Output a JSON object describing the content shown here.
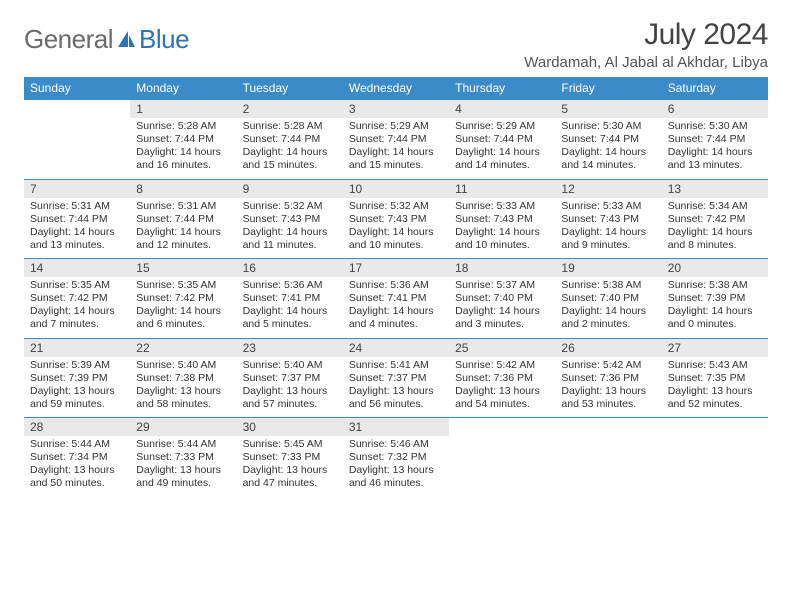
{
  "brand": {
    "name_part1": "General",
    "name_part2": "Blue"
  },
  "title": "July 2024",
  "location": "Wardamah, Al Jabal al Akhdar, Libya",
  "colors": {
    "header_bg": "#3b8bc8",
    "header_text": "#ffffff",
    "daynum_bg": "#e9e9e9",
    "border": "#3b8bc8",
    "logo_gray": "#6b6b6b",
    "logo_blue": "#2c74b3",
    "text": "#333333",
    "background": "#ffffff"
  },
  "typography": {
    "title_fontsize": 30,
    "location_fontsize": 15,
    "header_fontsize": 12,
    "daynum_fontsize": 12,
    "detail_fontsize": 10.5
  },
  "day_labels": [
    "Sunday",
    "Monday",
    "Tuesday",
    "Wednesday",
    "Thursday",
    "Friday",
    "Saturday"
  ],
  "weeks": [
    [
      null,
      {
        "n": "1",
        "sun": "Sunrise: 5:28 AM",
        "set": "Sunset: 7:44 PM",
        "d1": "Daylight: 14 hours",
        "d2": "and 16 minutes."
      },
      {
        "n": "2",
        "sun": "Sunrise: 5:28 AM",
        "set": "Sunset: 7:44 PM",
        "d1": "Daylight: 14 hours",
        "d2": "and 15 minutes."
      },
      {
        "n": "3",
        "sun": "Sunrise: 5:29 AM",
        "set": "Sunset: 7:44 PM",
        "d1": "Daylight: 14 hours",
        "d2": "and 15 minutes."
      },
      {
        "n": "4",
        "sun": "Sunrise: 5:29 AM",
        "set": "Sunset: 7:44 PM",
        "d1": "Daylight: 14 hours",
        "d2": "and 14 minutes."
      },
      {
        "n": "5",
        "sun": "Sunrise: 5:30 AM",
        "set": "Sunset: 7:44 PM",
        "d1": "Daylight: 14 hours",
        "d2": "and 14 minutes."
      },
      {
        "n": "6",
        "sun": "Sunrise: 5:30 AM",
        "set": "Sunset: 7:44 PM",
        "d1": "Daylight: 14 hours",
        "d2": "and 13 minutes."
      }
    ],
    [
      {
        "n": "7",
        "sun": "Sunrise: 5:31 AM",
        "set": "Sunset: 7:44 PM",
        "d1": "Daylight: 14 hours",
        "d2": "and 13 minutes."
      },
      {
        "n": "8",
        "sun": "Sunrise: 5:31 AM",
        "set": "Sunset: 7:44 PM",
        "d1": "Daylight: 14 hours",
        "d2": "and 12 minutes."
      },
      {
        "n": "9",
        "sun": "Sunrise: 5:32 AM",
        "set": "Sunset: 7:43 PM",
        "d1": "Daylight: 14 hours",
        "d2": "and 11 minutes."
      },
      {
        "n": "10",
        "sun": "Sunrise: 5:32 AM",
        "set": "Sunset: 7:43 PM",
        "d1": "Daylight: 14 hours",
        "d2": "and 10 minutes."
      },
      {
        "n": "11",
        "sun": "Sunrise: 5:33 AM",
        "set": "Sunset: 7:43 PM",
        "d1": "Daylight: 14 hours",
        "d2": "and 10 minutes."
      },
      {
        "n": "12",
        "sun": "Sunrise: 5:33 AM",
        "set": "Sunset: 7:43 PM",
        "d1": "Daylight: 14 hours",
        "d2": "and 9 minutes."
      },
      {
        "n": "13",
        "sun": "Sunrise: 5:34 AM",
        "set": "Sunset: 7:42 PM",
        "d1": "Daylight: 14 hours",
        "d2": "and 8 minutes."
      }
    ],
    [
      {
        "n": "14",
        "sun": "Sunrise: 5:35 AM",
        "set": "Sunset: 7:42 PM",
        "d1": "Daylight: 14 hours",
        "d2": "and 7 minutes."
      },
      {
        "n": "15",
        "sun": "Sunrise: 5:35 AM",
        "set": "Sunset: 7:42 PM",
        "d1": "Daylight: 14 hours",
        "d2": "and 6 minutes."
      },
      {
        "n": "16",
        "sun": "Sunrise: 5:36 AM",
        "set": "Sunset: 7:41 PM",
        "d1": "Daylight: 14 hours",
        "d2": "and 5 minutes."
      },
      {
        "n": "17",
        "sun": "Sunrise: 5:36 AM",
        "set": "Sunset: 7:41 PM",
        "d1": "Daylight: 14 hours",
        "d2": "and 4 minutes."
      },
      {
        "n": "18",
        "sun": "Sunrise: 5:37 AM",
        "set": "Sunset: 7:40 PM",
        "d1": "Daylight: 14 hours",
        "d2": "and 3 minutes."
      },
      {
        "n": "19",
        "sun": "Sunrise: 5:38 AM",
        "set": "Sunset: 7:40 PM",
        "d1": "Daylight: 14 hours",
        "d2": "and 2 minutes."
      },
      {
        "n": "20",
        "sun": "Sunrise: 5:38 AM",
        "set": "Sunset: 7:39 PM",
        "d1": "Daylight: 14 hours",
        "d2": "and 0 minutes."
      }
    ],
    [
      {
        "n": "21",
        "sun": "Sunrise: 5:39 AM",
        "set": "Sunset: 7:39 PM",
        "d1": "Daylight: 13 hours",
        "d2": "and 59 minutes."
      },
      {
        "n": "22",
        "sun": "Sunrise: 5:40 AM",
        "set": "Sunset: 7:38 PM",
        "d1": "Daylight: 13 hours",
        "d2": "and 58 minutes."
      },
      {
        "n": "23",
        "sun": "Sunrise: 5:40 AM",
        "set": "Sunset: 7:37 PM",
        "d1": "Daylight: 13 hours",
        "d2": "and 57 minutes."
      },
      {
        "n": "24",
        "sun": "Sunrise: 5:41 AM",
        "set": "Sunset: 7:37 PM",
        "d1": "Daylight: 13 hours",
        "d2": "and 56 minutes."
      },
      {
        "n": "25",
        "sun": "Sunrise: 5:42 AM",
        "set": "Sunset: 7:36 PM",
        "d1": "Daylight: 13 hours",
        "d2": "and 54 minutes."
      },
      {
        "n": "26",
        "sun": "Sunrise: 5:42 AM",
        "set": "Sunset: 7:36 PM",
        "d1": "Daylight: 13 hours",
        "d2": "and 53 minutes."
      },
      {
        "n": "27",
        "sun": "Sunrise: 5:43 AM",
        "set": "Sunset: 7:35 PM",
        "d1": "Daylight: 13 hours",
        "d2": "and 52 minutes."
      }
    ],
    [
      {
        "n": "28",
        "sun": "Sunrise: 5:44 AM",
        "set": "Sunset: 7:34 PM",
        "d1": "Daylight: 13 hours",
        "d2": "and 50 minutes."
      },
      {
        "n": "29",
        "sun": "Sunrise: 5:44 AM",
        "set": "Sunset: 7:33 PM",
        "d1": "Daylight: 13 hours",
        "d2": "and 49 minutes."
      },
      {
        "n": "30",
        "sun": "Sunrise: 5:45 AM",
        "set": "Sunset: 7:33 PM",
        "d1": "Daylight: 13 hours",
        "d2": "and 47 minutes."
      },
      {
        "n": "31",
        "sun": "Sunrise: 5:46 AM",
        "set": "Sunset: 7:32 PM",
        "d1": "Daylight: 13 hours",
        "d2": "and 46 minutes."
      },
      null,
      null,
      null
    ]
  ]
}
